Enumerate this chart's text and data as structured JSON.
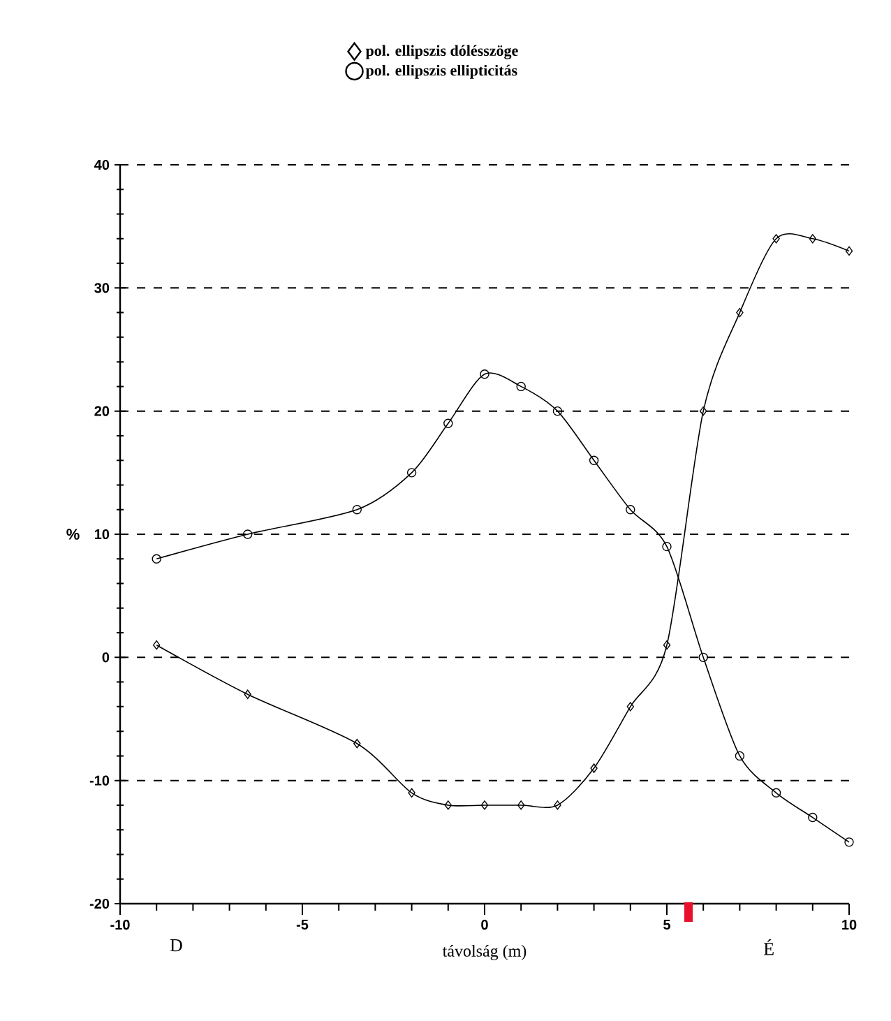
{
  "chart_data": {
    "type": "line",
    "xlabel": "távolság (m)",
    "ylabel": "%",
    "x": [
      -9,
      -6.5,
      -3.5,
      -2,
      -1,
      0,
      1,
      2,
      3,
      4,
      5,
      6,
      7,
      8,
      9,
      10
    ],
    "series": [
      {
        "name": "pol. ellipszis dólésszöge",
        "color": "#000000",
        "marker": "diamond",
        "values": [
          1,
          -3,
          -7,
          -11,
          -12,
          -12,
          -12,
          -12,
          -9,
          -4,
          1,
          20,
          28,
          34,
          34,
          33
        ]
      },
      {
        "name": "pol. ellipszis ellipticitás",
        "color": "#000000",
        "marker": "circle",
        "values": [
          8,
          10,
          12,
          15,
          19,
          23,
          22,
          20,
          16,
          12,
          9,
          0,
          -8,
          -11,
          -13,
          -15
        ]
      }
    ],
    "xlim": [
      -10,
      10
    ],
    "ylim": [
      -20,
      40
    ],
    "xticks": [
      -10,
      -5,
      0,
      5,
      10
    ],
    "yticks": [
      -20,
      -10,
      0,
      10,
      20,
      30,
      40
    ],
    "grid": "y",
    "legend": "top",
    "line_style": "solid",
    "annotations": [
      "D",
      "É"
    ]
  }
}
